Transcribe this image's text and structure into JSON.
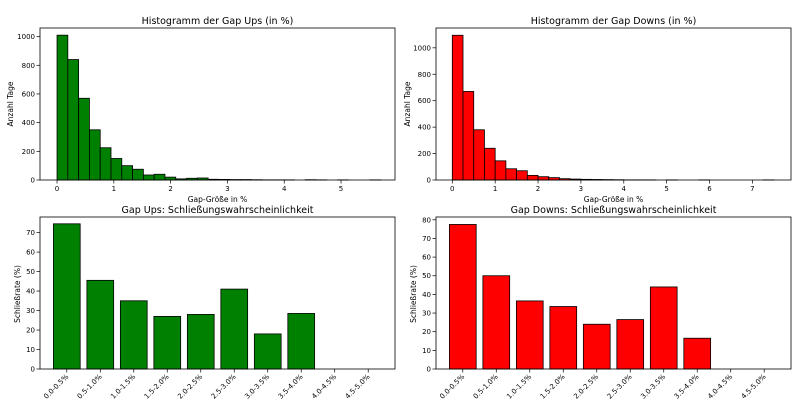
{
  "chart_data": [
    {
      "id": "hist_up",
      "type": "bar",
      "title": "Histogramm der Gap Ups (in %)",
      "xlabel": "Gap-Größe in %",
      "ylabel": "Anzahl Tage",
      "color": "#008000",
      "bin_width": 0.19,
      "x": [
        0.0,
        0.19,
        0.38,
        0.57,
        0.76,
        0.95,
        1.14,
        1.33,
        1.52,
        1.71,
        1.9,
        2.09,
        2.28,
        2.47,
        2.66,
        2.85,
        3.04,
        3.23,
        3.42,
        3.61,
        3.8,
        3.99,
        4.18,
        4.37,
        4.56,
        4.75,
        4.94,
        5.13,
        5.32,
        5.51
      ],
      "values": [
        1010,
        840,
        570,
        350,
        225,
        150,
        100,
        75,
        35,
        40,
        20,
        8,
        12,
        14,
        5,
        4,
        3,
        3,
        2,
        1,
        1,
        1,
        0,
        2,
        1,
        0,
        1,
        0,
        0,
        1
      ],
      "xlim": [
        -0.3,
        5.95
      ],
      "ylim": [
        0,
        1060
      ],
      "xticks": [
        "0",
        "1",
        "2",
        "3",
        "4",
        "5"
      ],
      "yticks": [
        "0",
        "200",
        "400",
        "600",
        "800",
        "1000"
      ],
      "xtick_values": [
        0,
        1,
        2,
        3,
        4,
        5
      ],
      "ytick_values": [
        0,
        200,
        400,
        600,
        800,
        1000
      ]
    },
    {
      "id": "hist_down",
      "type": "bar",
      "title": "Histogramm der Gap Downs (in %)",
      "xlabel": "Gap-Größe in %",
      "ylabel": "Anzahl Tage",
      "color": "#ff0000",
      "bin_width": 0.25,
      "x": [
        0.0,
        0.25,
        0.5,
        0.75,
        1.0,
        1.25,
        1.5,
        1.75,
        2.0,
        2.25,
        2.5,
        2.75,
        3.0,
        3.25,
        3.5,
        3.75,
        4.0,
        4.25,
        4.5,
        4.75,
        5.0,
        5.25,
        5.5,
        5.75,
        6.0,
        6.25,
        6.5,
        6.75,
        7.0,
        7.25
      ],
      "values": [
        1095,
        670,
        380,
        240,
        145,
        85,
        70,
        35,
        25,
        18,
        10,
        7,
        5,
        4,
        3,
        2,
        1,
        1,
        1,
        0,
        1,
        0,
        0,
        1,
        0,
        0,
        0,
        0,
        0,
        1
      ],
      "xlim": [
        -0.38,
        7.9
      ],
      "ylim": [
        0,
        1150
      ],
      "xticks": [
        "0",
        "1",
        "2",
        "3",
        "4",
        "5",
        "6",
        "7"
      ],
      "yticks": [
        "0",
        "200",
        "400",
        "600",
        "800",
        "1000"
      ],
      "xtick_values": [
        0,
        1,
        2,
        3,
        4,
        5,
        6,
        7
      ],
      "ytick_values": [
        0,
        200,
        400,
        600,
        800,
        1000
      ]
    },
    {
      "id": "close_up",
      "type": "bar",
      "title": "Gap Ups: Schließungswahrscheinlichkeit",
      "xlabel": "",
      "ylabel": "Schließrate (%)",
      "color": "#008000",
      "categories": [
        "0.0-0.5%",
        "0.5-1.0%",
        "1.0-1.5%",
        "1.5-2.0%",
        "2.0-2.5%",
        "2.5-3.0%",
        "3.0-3.5%",
        "3.5-4.0%",
        "4.0-4.5%",
        "4.5-5.0%"
      ],
      "values": [
        74.5,
        45.5,
        35,
        27,
        28,
        41,
        18,
        28.5,
        0,
        0
      ],
      "ylim": [
        0,
        78
      ],
      "yticks": [
        "0",
        "10",
        "20",
        "30",
        "40",
        "50",
        "60",
        "70"
      ],
      "ytick_values": [
        0,
        10,
        20,
        30,
        40,
        50,
        60,
        70
      ]
    },
    {
      "id": "close_down",
      "type": "bar",
      "title": "Gap Downs: Schließungswahrscheinlichkeit",
      "xlabel": "",
      "ylabel": "Schließrate (%)",
      "color": "#ff0000",
      "categories": [
        "0.0-0.5%",
        "0.5-1.0%",
        "1.0-1.5%",
        "1.5-2.0%",
        "2.0-2.5%",
        "2.5-3.0%",
        "3.0-3.5%",
        "3.5-4.0%",
        "4.0-4.5%",
        "4.5-5.0%"
      ],
      "values": [
        77.5,
        50,
        36.5,
        33.5,
        24,
        26.5,
        44,
        16.5,
        0,
        0
      ],
      "ylim": [
        0,
        81.5
      ],
      "yticks": [
        "0",
        "10",
        "20",
        "30",
        "40",
        "50",
        "60",
        "70",
        "80"
      ],
      "ytick_values": [
        0,
        10,
        20,
        30,
        40,
        50,
        60,
        70,
        80
      ]
    }
  ]
}
